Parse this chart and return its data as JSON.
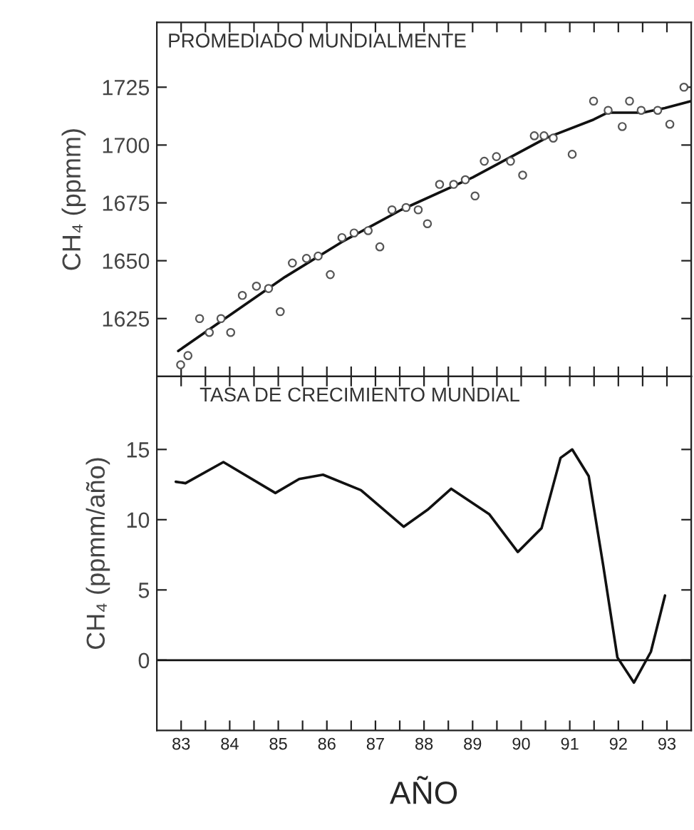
{
  "chart_data": [
    {
      "type": "line",
      "ylabel": "CH₄ (ppmm)",
      "annotations": [
        "PROMEDIADO MUNDIALMENTE"
      ],
      "tick_labels": "y",
      "grid": false,
      "legend": false,
      "xlim": [
        82.5,
        93.5
      ],
      "ylim": [
        1600,
        1753
      ],
      "xticks": [
        83,
        {
          "value": 83.5,
          "label": null
        },
        84,
        {
          "value": 84.5,
          "label": null
        },
        85,
        {
          "value": 85.5,
          "label": null
        },
        86,
        {
          "value": 86.5,
          "label": null
        },
        87,
        {
          "value": 87.5,
          "label": null
        },
        88,
        {
          "value": 88.5,
          "label": null
        },
        89,
        {
          "value": 89.5,
          "label": null
        },
        90,
        {
          "value": 90.5,
          "label": null
        },
        91,
        {
          "value": 91.5,
          "label": null
        },
        92,
        {
          "value": 92.5,
          "label": null
        },
        93
      ],
      "yticks": [
        1625,
        1650,
        1675,
        1700,
        1725
      ],
      "series": [
        {
          "type": "scatter",
          "marker": "circle",
          "color": "#555555",
          "x": [
            82.99,
            83.14,
            83.38,
            83.58,
            83.82,
            84.02,
            84.26,
            84.55,
            84.8,
            85.04,
            85.29,
            85.58,
            85.82,
            86.07,
            86.31,
            86.56,
            86.85,
            87.09,
            87.34,
            87.63,
            87.88,
            88.07,
            88.32,
            88.61,
            88.85,
            89.05,
            89.24,
            89.49,
            89.78,
            90.03,
            90.27,
            90.47,
            90.66,
            91.05,
            91.49,
            91.79,
            92.08,
            92.23,
            92.47,
            92.81,
            93.06,
            93.35
          ],
          "values": [
            1605,
            1609,
            1625,
            1619,
            1625,
            1619,
            1635,
            1639,
            1638,
            1628,
            1649,
            1651,
            1652,
            1644,
            1660,
            1662,
            1663,
            1656,
            1672,
            1673,
            1672,
            1666,
            1683,
            1683,
            1685,
            1678,
            1693,
            1695,
            1693,
            1687,
            1704,
            1704,
            1703,
            1696,
            1719,
            1715,
            1708,
            1719,
            1715,
            1715,
            1709,
            1725
          ]
        },
        {
          "marker": "none",
          "line_style": "solid",
          "color": "#111111",
          "x": [
            82.94,
            85.14,
            86.3,
            87.53,
            89.0,
            90.51,
            91.49,
            91.78,
            92.5,
            92.96,
            93.5
          ],
          "values": [
            1611,
            1643,
            1658,
            1672,
            1686,
            1703,
            1711,
            1714,
            1714,
            1716,
            1719
          ]
        }
      ]
    },
    {
      "type": "line",
      "ylabel": "CH₄ (ppmm/año)",
      "xlabel": "AÑO",
      "annotations": [
        "TASA DE CRECIMIENTO MUNDIAL"
      ],
      "grid": false,
      "legend": false,
      "xlim": [
        82.5,
        93.5
      ],
      "ylim": [
        -5,
        20.2
      ],
      "xticks": [
        83,
        {
          "value": 83.5,
          "label": null
        },
        84,
        {
          "value": 84.5,
          "label": null
        },
        85,
        {
          "value": 85.5,
          "label": null
        },
        86,
        {
          "value": 86.5,
          "label": null
        },
        87,
        {
          "value": 87.5,
          "label": null
        },
        88,
        {
          "value": 88.5,
          "label": null
        },
        89,
        {
          "value": 89.5,
          "label": null
        },
        90,
        {
          "value": 90.5,
          "label": null
        },
        91,
        {
          "value": 91.5,
          "label": null
        },
        92,
        {
          "value": 92.5,
          "label": null
        },
        93
      ],
      "yticks": [
        0,
        5,
        10,
        15
      ],
      "ref_lines": [
        {
          "axis": "y",
          "value": 0,
          "color": "#111111",
          "line_style": "solid"
        }
      ],
      "series": [
        {
          "marker": "none",
          "line_style": "solid",
          "color": "#111111",
          "x": [
            82.89,
            83.09,
            83.87,
            84.94,
            85.43,
            85.92,
            86.7,
            87.58,
            88.07,
            88.56,
            89.34,
            89.93,
            90.42,
            90.81,
            91.05,
            91.39,
            91.69,
            91.98,
            92.32,
            92.67,
            92.96
          ],
          "values": [
            12.7,
            12.6,
            14.1,
            11.9,
            12.9,
            13.2,
            12.1,
            9.5,
            10.7,
            12.2,
            10.4,
            7.7,
            9.4,
            14.4,
            15.0,
            13.1,
            6.7,
            0.2,
            -1.6,
            0.6,
            4.6
          ]
        }
      ]
    }
  ]
}
